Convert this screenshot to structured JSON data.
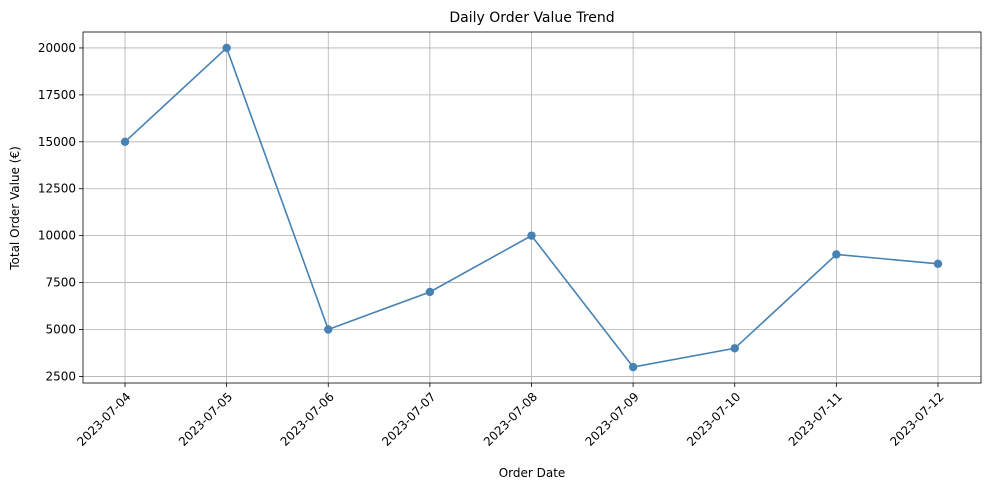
{
  "chart_data": {
    "type": "line",
    "title": "Daily Order Value Trend",
    "xlabel": "Order Date",
    "ylabel": "Total Order Value (€)",
    "categories": [
      "2023-07-04",
      "2023-07-05",
      "2023-07-06",
      "2023-07-07",
      "2023-07-08",
      "2023-07-09",
      "2023-07-10",
      "2023-07-11",
      "2023-07-12"
    ],
    "series": [
      {
        "values": [
          15000,
          20000,
          5000,
          7000,
          10000,
          3000,
          4000,
          9000,
          8500
        ],
        "color": "#4682b4",
        "marker": "circle"
      }
    ],
    "yticks": [
      2500,
      5000,
      7500,
      10000,
      12500,
      15000,
      17500,
      20000
    ],
    "ylim": [
      2150,
      20850
    ],
    "grid": true,
    "legend": "none"
  }
}
